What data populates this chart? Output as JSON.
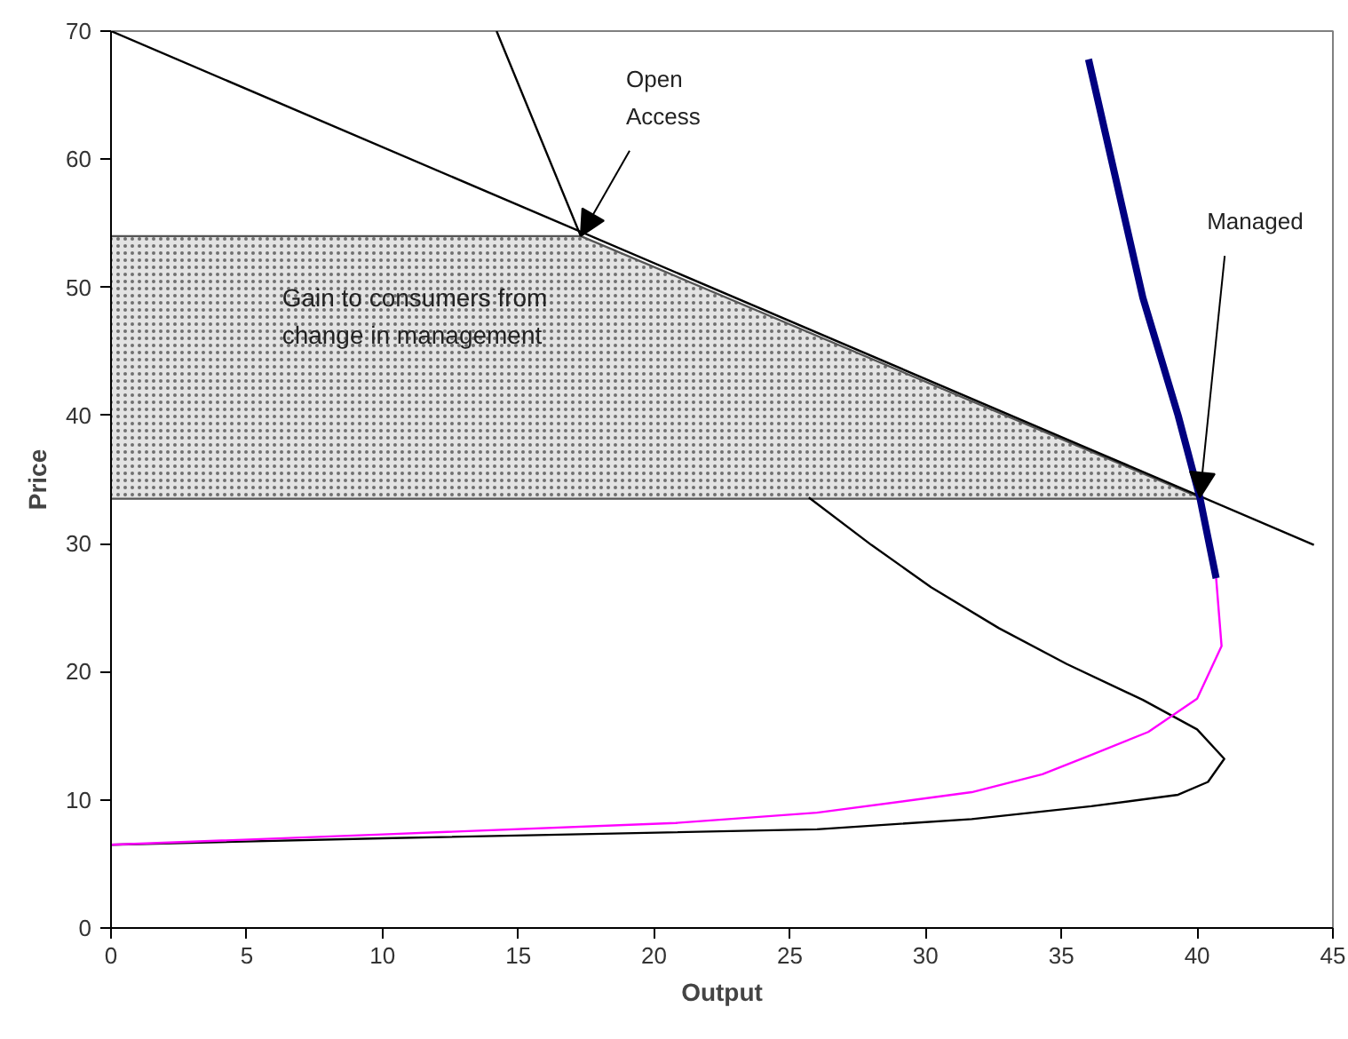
{
  "chart_data": {
    "type": "line",
    "xlabel": "Output",
    "ylabel": "Price",
    "xlim": [
      0,
      45
    ],
    "ylim": [
      0,
      70
    ],
    "xticks": [
      0,
      5,
      10,
      15,
      20,
      25,
      30,
      35,
      40,
      45
    ],
    "yticks": [
      0,
      10,
      20,
      30,
      40,
      50,
      60,
      70
    ],
    "grid": false,
    "marker": "none",
    "line_style": "solid",
    "series": [
      {
        "color": "#555555",
        "x": [
          0,
          17.3,
          40.1
        ],
        "values": [
          54,
          54,
          33.6
        ],
        "lower": [
          33.5,
          33.5,
          33.5
        ],
        "upper": [
          54,
          54,
          33.6
        ]
      },
      {
        "color": "#555555",
        "x": [
          0,
          40.1
        ],
        "values": [
          33.5,
          33.5
        ]
      },
      {
        "color": "#000000",
        "x": [
          0,
          44.3
        ],
        "values": [
          70,
          29.9
        ]
      },
      {
        "color": "#000000",
        "x": [
          14.2,
          17.3,
          21.5,
          25.7,
          28.0,
          30.2,
          32.7,
          35.2,
          38.0,
          40.0,
          41.0,
          40.4,
          39.3,
          36.1,
          31.7,
          26.0,
          10,
          0
        ],
        "values": [
          70,
          54,
          null,
          33.6,
          29.9,
          26.6,
          23.4,
          20.6,
          17.8,
          15.5,
          13.2,
          11.4,
          10.4,
          9.5,
          8.5,
          7.7,
          7.0,
          6.5
        ]
      },
      {
        "color": "#ff00ff",
        "x": [
          0,
          10,
          20.8,
          26,
          31.7,
          34.3,
          36.1,
          38.2,
          40.0,
          40.9,
          40.7
        ],
        "values": [
          6.5,
          7.3,
          8.2,
          9.0,
          10.6,
          12.0,
          13.5,
          15.3,
          17.9,
          22.0,
          27.3
        ]
      },
      {
        "color": "#000080",
        "x": [
          36.0,
          37.0,
          38.0,
          39.3,
          40.1,
          40.7
        ],
        "values": [
          67.8,
          58.5,
          49.2,
          40.0,
          33.6,
          27.3
        ]
      }
    ],
    "annotations": [
      {
        "text": "Open Access",
        "x": 17.3,
        "y": 54
      },
      {
        "text": "Managed",
        "x": 40.1,
        "y": 33.6
      },
      "Gain to consumers from change in management"
    ]
  }
}
